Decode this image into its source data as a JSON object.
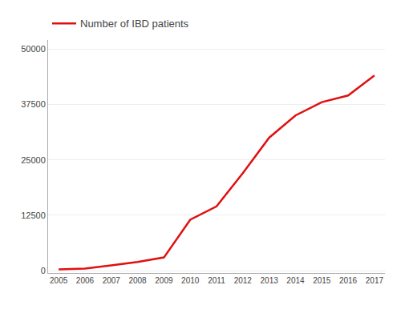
{
  "chart_data": {
    "type": "line",
    "x": [
      2005,
      2006,
      2007,
      2008,
      2009,
      2010,
      2011,
      2012,
      2013,
      2014,
      2015,
      2016,
      2017
    ],
    "series": [
      {
        "name": "Number of IBD patients",
        "color": "#e01010",
        "values": [
          300,
          500,
          1200,
          2000,
          3000,
          11500,
          14500,
          22000,
          30000,
          35000,
          38000,
          39500,
          44000
        ]
      }
    ],
    "xlim": [
      2004.6,
      2017.4
    ],
    "xticks": [
      2005,
      2006,
      2007,
      2008,
      2009,
      2010,
      2011,
      2012,
      2013,
      2014,
      2015,
      2016,
      2017
    ],
    "ylim": [
      -500,
      52000
    ],
    "yticks": [
      0,
      12500,
      25000,
      37500,
      50000
    ],
    "grid": true,
    "legend": "upper left"
  }
}
